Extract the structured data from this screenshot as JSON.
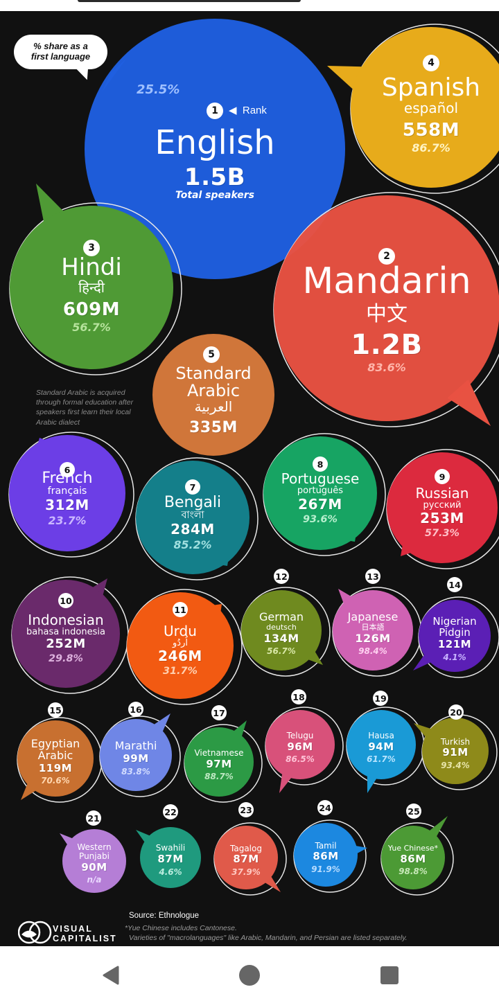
{
  "legend": {
    "line1": "% share as a",
    "line2": "first language",
    "rank_label": "Rank"
  },
  "note_arabic": "Standard Arabic is acquired through formal education after speakers first learn their local Arabic dialect",
  "source": "Source: Ethnologue",
  "footnote1": "*Yue Chinese includes Cantonese.",
  "footnote2": "Varieties of \"macrolanguages\" like Arabic, Mandarin, and Persian are listed separately.",
  "logo": {
    "line1": "VISUAL",
    "line2": "CAPITALIST"
  },
  "colors": {
    "background": "#111111",
    "english": "#1f5fe0",
    "mandarin": "#e85242",
    "spanish": "#e7ab1b",
    "hindi": "#4f9a35"
  },
  "languages": [
    {
      "rank": "1",
      "name": "English",
      "native": "",
      "speakers": "1.5B",
      "sub": "Total speakers",
      "pct": "25.5%",
      "color": "#1f5fe0"
    },
    {
      "rank": "2",
      "name": "Mandarin",
      "native": "中文",
      "speakers": "1.2B",
      "pct": "83.6%",
      "color": "#e85242"
    },
    {
      "rank": "3",
      "name": "Hindi",
      "native": "हिन्दी",
      "speakers": "609M",
      "pct": "56.7%",
      "color": "#4f9a35"
    },
    {
      "rank": "4",
      "name": "Spanish",
      "native": "español",
      "speakers": "558M",
      "pct": "86.7%",
      "color": "#e7ab1b"
    },
    {
      "rank": "5",
      "name": "Standard Arabic",
      "native": "العربية",
      "speakers": "335M",
      "pct": "",
      "color": "#d0763a"
    },
    {
      "rank": "6",
      "name": "French",
      "native": "français",
      "speakers": "312M",
      "pct": "23.7%",
      "color": "#6c3ee6"
    },
    {
      "rank": "7",
      "name": "Bengali",
      "native": "বাংলা",
      "speakers": "284M",
      "pct": "85.2%",
      "color": "#147f8a"
    },
    {
      "rank": "8",
      "name": "Portuguese",
      "native": "português",
      "speakers": "267M",
      "pct": "93.6%",
      "color": "#17a463"
    },
    {
      "rank": "9",
      "name": "Russian",
      "native": "русский",
      "speakers": "253M",
      "pct": "57.3%",
      "color": "#dc2a3e"
    },
    {
      "rank": "10",
      "name": "Indonesian",
      "native": "bahasa indonesia",
      "speakers": "252M",
      "pct": "29.8%",
      "color": "#6a2a6b"
    },
    {
      "rank": "11",
      "name": "Urdu",
      "native": "اُردُو",
      "speakers": "246M",
      "pct": "31.7%",
      "color": "#f25a12"
    },
    {
      "rank": "12",
      "name": "German",
      "native": "deutsch",
      "speakers": "134M",
      "pct": "56.7%",
      "color": "#6f8a1f"
    },
    {
      "rank": "13",
      "name": "Japanese",
      "native": "日本語",
      "speakers": "126M",
      "pct": "98.4%",
      "color": "#cf62b3"
    },
    {
      "rank": "14",
      "name": "Nigerian Pidgin",
      "native": "",
      "speakers": "121M",
      "pct": "4.1%",
      "color": "#5b1fb5"
    },
    {
      "rank": "15",
      "name": "Egyptian Arabic",
      "native": "",
      "speakers": "119M",
      "pct": "70.6%",
      "color": "#c87030"
    },
    {
      "rank": "16",
      "name": "Marathi",
      "native": "",
      "speakers": "99M",
      "pct": "83.8%",
      "color": "#6f86e6"
    },
    {
      "rank": "17",
      "name": "Vietnamese",
      "native": "",
      "speakers": "97M",
      "pct": "88.7%",
      "color": "#2c9a45"
    },
    {
      "rank": "18",
      "name": "Telugu",
      "native": "",
      "speakers": "96M",
      "pct": "86.5%",
      "color": "#d8517a"
    },
    {
      "rank": "19",
      "name": "Hausa",
      "native": "",
      "speakers": "94M",
      "pct": "61.7%",
      "color": "#1a9ad6"
    },
    {
      "rank": "20",
      "name": "Turkish",
      "native": "",
      "speakers": "91M",
      "pct": "93.4%",
      "color": "#8e8a1a"
    },
    {
      "rank": "21",
      "name": "Western Punjabi",
      "native": "",
      "speakers": "90M",
      "pct": "n/a",
      "color": "#b57ed6"
    },
    {
      "rank": "22",
      "name": "Swahili",
      "native": "",
      "speakers": "87M",
      "pct": "4.6%",
      "color": "#1f9a7e"
    },
    {
      "rank": "23",
      "name": "Tagalog",
      "native": "",
      "speakers": "87M",
      "pct": "37.9%",
      "color": "#e05a4a"
    },
    {
      "rank": "24",
      "name": "Tamil",
      "native": "",
      "speakers": "86M",
      "pct": "91.9%",
      "color": "#1c88e0"
    },
    {
      "rank": "25",
      "name": "Yue Chinese*",
      "native": "",
      "speakers": "86M",
      "pct": "98.8%",
      "color": "#4c9a35"
    }
  ]
}
